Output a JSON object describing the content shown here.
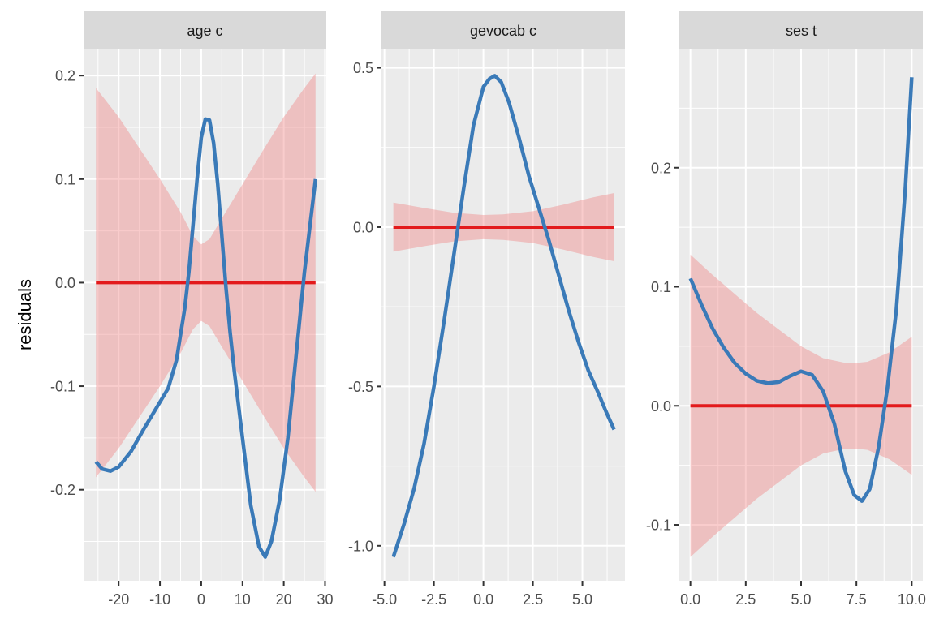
{
  "chart_data": [
    {
      "type": "line",
      "panel_title": "age c",
      "ylabel": "residuals",
      "xlim": [
        -28.5,
        30.3
      ],
      "ylim": [
        -0.288,
        0.226
      ],
      "x_ticks": [
        -20,
        -10,
        0,
        10,
        20,
        30
      ],
      "x_tick_labels": [
        "-20",
        "-10",
        "0",
        "10",
        "20",
        "30"
      ],
      "y_ticks": [
        0.2,
        0.1,
        0.0,
        -0.1,
        -0.2
      ],
      "y_tick_labels": [
        "0.2",
        "0.1",
        "0.0",
        "-0.1",
        "-0.2"
      ],
      "grid": true,
      "series": [
        {
          "name": "smooth",
          "color": "#3a7ab8",
          "x": [
            -25.5,
            -24,
            -22,
            -20,
            -17,
            -14,
            -11,
            -8,
            -6,
            -4,
            -3,
            -2,
            -1,
            0,
            1,
            2,
            3,
            4,
            5,
            6,
            7,
            8,
            10,
            12,
            14,
            15.5,
            17,
            19,
            21,
            23,
            25,
            26.5,
            27.7
          ],
          "y": [
            -0.173,
            -0.18,
            -0.182,
            -0.178,
            -0.163,
            -0.142,
            -0.122,
            -0.102,
            -0.075,
            -0.025,
            0.01,
            0.055,
            0.1,
            0.14,
            0.158,
            0.157,
            0.135,
            0.095,
            0.045,
            -0.005,
            -0.048,
            -0.085,
            -0.15,
            -0.215,
            -0.255,
            -0.265,
            -0.25,
            -0.21,
            -0.15,
            -0.07,
            0.01,
            0.06,
            0.1
          ]
        },
        {
          "name": "zero",
          "color": "#e31a1c",
          "x": [
            -25.5,
            27.7
          ],
          "y": [
            0.0,
            0.0
          ]
        }
      ],
      "ribbon": {
        "color": "#f08080",
        "x": [
          -25.5,
          -20,
          -15,
          -10,
          -5,
          -2,
          0,
          2,
          5,
          10,
          15,
          20,
          25,
          27.7
        ],
        "upper": [
          0.188,
          0.16,
          0.13,
          0.1,
          0.068,
          0.045,
          0.037,
          0.042,
          0.062,
          0.095,
          0.128,
          0.16,
          0.188,
          0.202
        ],
        "lower": [
          -0.188,
          -0.16,
          -0.13,
          -0.1,
          -0.068,
          -0.045,
          -0.037,
          -0.042,
          -0.062,
          -0.095,
          -0.128,
          -0.16,
          -0.188,
          -0.202
        ]
      }
    },
    {
      "type": "line",
      "panel_title": "gevocab c",
      "xlim": [
        -5.15,
        7.15
      ],
      "ylim": [
        -1.11,
        0.56
      ],
      "x_ticks": [
        -5.0,
        -2.5,
        0.0,
        2.5,
        5.0
      ],
      "x_tick_labels": [
        "-5.0",
        "-2.5",
        "0.0",
        "2.5",
        "5.0"
      ],
      "y_ticks": [
        0.5,
        0.0,
        -0.5,
        -1.0
      ],
      "y_tick_labels": [
        "0.5",
        "0.0",
        "-0.5",
        "-1.0"
      ],
      "grid": true,
      "series": [
        {
          "name": "smooth",
          "color": "#3a7ab8",
          "x": [
            -4.55,
            -4.0,
            -3.5,
            -3.0,
            -2.5,
            -2.0,
            -1.5,
            -1.0,
            -0.5,
            0.0,
            0.3,
            0.57,
            0.9,
            1.3,
            1.8,
            2.3,
            2.8,
            3.3,
            3.8,
            4.3,
            4.8,
            5.3,
            5.8,
            6.2,
            6.6
          ],
          "y": [
            -1.035,
            -0.93,
            -0.82,
            -0.68,
            -0.5,
            -0.3,
            -0.09,
            0.12,
            0.32,
            0.44,
            0.465,
            0.475,
            0.455,
            0.39,
            0.28,
            0.16,
            0.06,
            -0.04,
            -0.15,
            -0.26,
            -0.36,
            -0.45,
            -0.52,
            -0.58,
            -0.635
          ]
        },
        {
          "name": "zero",
          "color": "#e31a1c",
          "x": [
            -4.55,
            6.6
          ],
          "y": [
            0.0,
            0.0
          ]
        }
      ],
      "ribbon": {
        "color": "#f08080",
        "x": [
          -4.55,
          -3.0,
          -1.5,
          0.0,
          1.0,
          2.5,
          4.0,
          5.5,
          6.6
        ],
        "upper": [
          0.077,
          0.06,
          0.045,
          0.038,
          0.04,
          0.05,
          0.07,
          0.093,
          0.107
        ],
        "lower": [
          -0.077,
          -0.06,
          -0.045,
          -0.038,
          -0.04,
          -0.05,
          -0.07,
          -0.093,
          -0.107
        ]
      }
    },
    {
      "type": "line",
      "panel_title": "ses t",
      "xlim": [
        -0.5,
        10.5
      ],
      "ylim": [
        -0.147,
        0.3
      ],
      "x_ticks": [
        0.0,
        2.5,
        5.0,
        7.5,
        10.0
      ],
      "x_tick_labels": [
        "0.0",
        "2.5",
        "5.0",
        "7.5",
        "10.0"
      ],
      "y_ticks": [
        0.2,
        0.1,
        0.0,
        -0.1
      ],
      "y_tick_labels": [
        "0.2",
        "0.1",
        "0.0",
        "-0.1"
      ],
      "grid": true,
      "series": [
        {
          "name": "smooth",
          "color": "#3a7ab8",
          "x": [
            0.0,
            0.5,
            1.0,
            1.5,
            2.0,
            2.5,
            3.0,
            3.5,
            4.0,
            4.5,
            5.0,
            5.5,
            6.0,
            6.5,
            7.0,
            7.4,
            7.75,
            8.1,
            8.5,
            8.9,
            9.3,
            9.7,
            10.0
          ],
          "y": [
            0.107,
            0.085,
            0.065,
            0.049,
            0.036,
            0.027,
            0.021,
            0.019,
            0.02,
            0.025,
            0.029,
            0.026,
            0.012,
            -0.015,
            -0.055,
            -0.075,
            -0.08,
            -0.07,
            -0.035,
            0.015,
            0.08,
            0.18,
            0.276
          ]
        },
        {
          "name": "zero",
          "color": "#e31a1c",
          "x": [
            0.0,
            10.0
          ],
          "y": [
            0.0,
            0.0
          ]
        }
      ],
      "ribbon": {
        "color": "#f08080",
        "x": [
          0.0,
          1.0,
          2.0,
          3.0,
          4.0,
          5.0,
          6.0,
          7.0,
          7.5,
          8.0,
          9.0,
          10.0
        ],
        "upper": [
          0.127,
          0.11,
          0.094,
          0.078,
          0.064,
          0.05,
          0.04,
          0.036,
          0.036,
          0.037,
          0.045,
          0.058
        ],
        "lower": [
          -0.127,
          -0.11,
          -0.094,
          -0.078,
          -0.064,
          -0.05,
          -0.04,
          -0.036,
          -0.036,
          -0.037,
          -0.045,
          -0.058
        ]
      }
    }
  ]
}
